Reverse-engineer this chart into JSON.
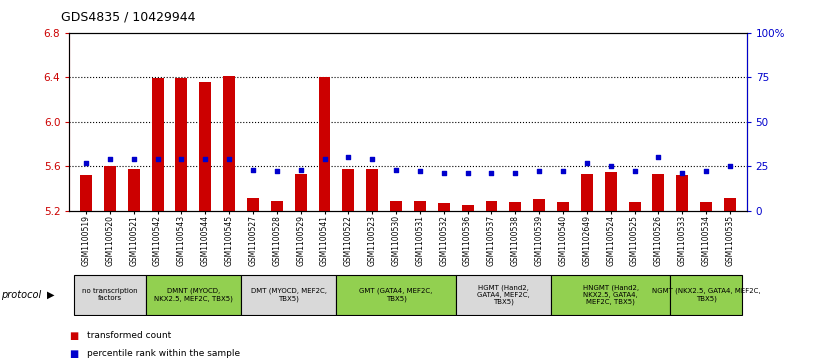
{
  "title": "GDS4835 / 10429944",
  "samples": [
    "GSM1100519",
    "GSM1100520",
    "GSM1100521",
    "GSM1100542",
    "GSM1100543",
    "GSM1100544",
    "GSM1100545",
    "GSM1100527",
    "GSM1100528",
    "GSM1100529",
    "GSM1100541",
    "GSM1100522",
    "GSM1100523",
    "GSM1100530",
    "GSM1100531",
    "GSM1100532",
    "GSM1100536",
    "GSM1100537",
    "GSM1100538",
    "GSM1100539",
    "GSM1100540",
    "GSM1102649",
    "GSM1100524",
    "GSM1100525",
    "GSM1100526",
    "GSM1100533",
    "GSM1100534",
    "GSM1100535"
  ],
  "transformed_count": [
    5.52,
    5.6,
    5.57,
    6.39,
    6.39,
    6.36,
    6.41,
    5.31,
    5.29,
    5.53,
    6.4,
    5.57,
    5.57,
    5.29,
    5.29,
    5.27,
    5.25,
    5.29,
    5.28,
    5.3,
    5.28,
    5.53,
    5.55,
    5.28,
    5.53,
    5.52,
    5.28,
    5.31
  ],
  "percentile_rank": [
    27,
    29,
    29,
    29,
    29,
    29,
    29,
    23,
    22,
    23,
    29,
    30,
    29,
    23,
    22,
    21,
    21,
    21,
    21,
    22,
    22,
    27,
    25,
    22,
    30,
    21,
    22,
    25
  ],
  "groups": [
    {
      "label": "no transcription\nfactors",
      "count": 3,
      "color": "#d9d9d9"
    },
    {
      "label": "DMNT (MYOCD,\nNKX2.5, MEF2C, TBX5)",
      "count": 4,
      "color": "#92d050"
    },
    {
      "label": "DMT (MYOCD, MEF2C,\nTBX5)",
      "count": 4,
      "color": "#d9d9d9"
    },
    {
      "label": "GMT (GATA4, MEF2C,\nTBX5)",
      "count": 5,
      "color": "#92d050"
    },
    {
      "label": "HGMT (Hand2,\nGATA4, MEF2C,\nTBX5)",
      "count": 4,
      "color": "#d9d9d9"
    },
    {
      "label": "HNGMT (Hand2,\nNKX2.5, GATA4,\nMEF2C, TBX5)",
      "count": 5,
      "color": "#92d050"
    },
    {
      "label": "NGMT (NKX2.5, GATA4, MEF2C,\nTBX5)",
      "count": 3,
      "color": "#92d050"
    }
  ],
  "ylim_left": [
    5.2,
    6.8
  ],
  "ylim_right": [
    0,
    100
  ],
  "yticks_left": [
    5.2,
    5.6,
    6.0,
    6.4,
    6.8
  ],
  "yticks_right": [
    0,
    25,
    50,
    75,
    100
  ],
  "bar_color": "#cc0000",
  "dot_color": "#0000cc",
  "bar_bottom": 5.2,
  "legend_items": [
    {
      "label": "transformed count",
      "color": "#cc0000"
    },
    {
      "label": "percentile rank within the sample",
      "color": "#0000cc"
    }
  ],
  "grid_lines": [
    5.6,
    6.0,
    6.4
  ],
  "background_color": "#ffffff"
}
